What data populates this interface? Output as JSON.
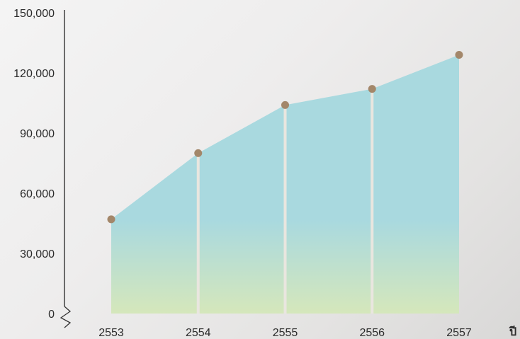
{
  "chart_data": {
    "type": "area",
    "title": "",
    "xlabel": "ปี",
    "ylabel": "",
    "x": [
      "2553",
      "2554",
      "2555",
      "2556",
      "2557"
    ],
    "values": [
      47000,
      80000,
      104000,
      112000,
      129000
    ],
    "ylim": [
      0,
      150000
    ],
    "yticks": [
      "0",
      "30,000",
      "60,000",
      "90,000",
      "120,000",
      "150,000"
    ],
    "grid": false,
    "colors": {
      "area_top": "#a9d9df",
      "area_bottom": "#d5e7bb",
      "marker": "#a3876a",
      "divider": "#e9e6df",
      "axis": "#333333"
    }
  }
}
